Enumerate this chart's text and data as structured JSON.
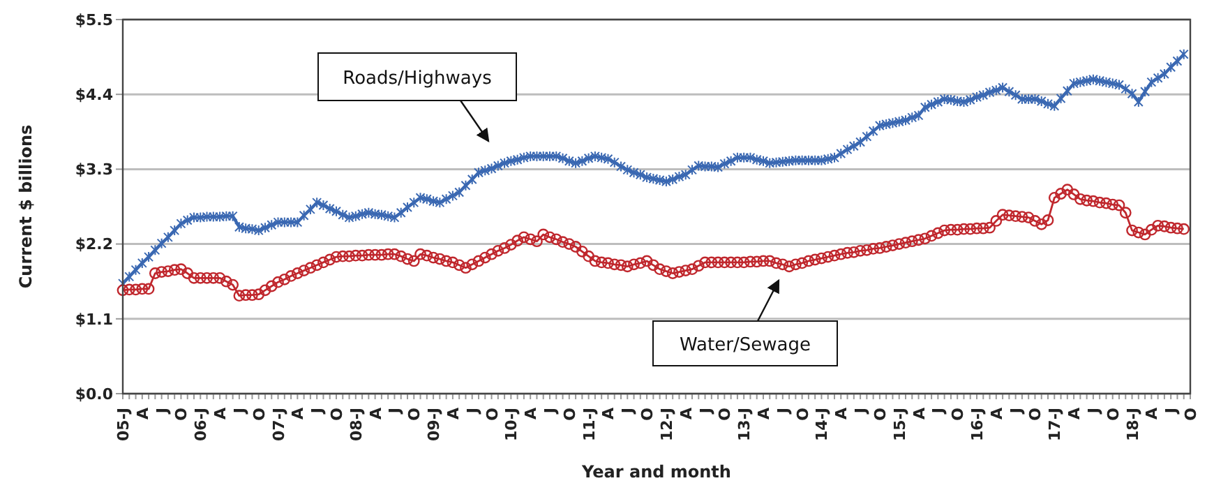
{
  "chart_data": {
    "type": "line",
    "xlabel": "Year and month",
    "ylabel": "Current $ billions",
    "categories": [
      "05-J",
      null,
      null,
      "A",
      null,
      null,
      "J",
      null,
      null,
      "O",
      null,
      null,
      "06-J",
      null,
      null,
      "A",
      null,
      null,
      "J",
      null,
      null,
      "O",
      null,
      null,
      "07-J",
      null,
      null,
      "A",
      null,
      null,
      "J",
      null,
      null,
      "O",
      null,
      null,
      "08-J",
      null,
      null,
      "A",
      null,
      null,
      "J",
      null,
      null,
      "O",
      null,
      null,
      "09-J",
      null,
      null,
      "A",
      null,
      null,
      "J",
      null,
      null,
      "O",
      null,
      null,
      "10-J",
      null,
      null,
      "A",
      null,
      null,
      "J",
      null,
      null,
      "O",
      null,
      null,
      "11-J",
      null,
      null,
      "A",
      null,
      null,
      "J",
      null,
      null,
      "O",
      null,
      null,
      "12-J",
      null,
      null,
      "A",
      null,
      null,
      "J",
      null,
      null,
      "O",
      null,
      null,
      "13-J",
      null,
      null,
      "A",
      null,
      null,
      "J",
      null,
      null,
      "O",
      null,
      null,
      "14-J",
      null,
      null,
      "A",
      null,
      null,
      "J",
      null,
      null,
      "O",
      null,
      null,
      "15-J",
      null,
      null,
      "A",
      null,
      null,
      "J",
      null,
      null,
      "O",
      null,
      null,
      "16-J",
      null,
      null,
      "A",
      null,
      null,
      "J",
      null,
      null,
      "O",
      null,
      null,
      "17-J",
      null,
      null,
      "A",
      null,
      null,
      "J",
      null,
      null,
      "O",
      null,
      null,
      "18-J",
      null,
      null,
      "A",
      null,
      null,
      "J",
      null,
      null,
      "O"
    ],
    "series": [
      {
        "color": "#3a68b2",
        "marker": "cross",
        "values": [
          1.62,
          1.72,
          1.82,
          1.92,
          2.01,
          2.11,
          2.21,
          2.3,
          2.4,
          2.5,
          2.55,
          2.59,
          2.59,
          2.6,
          2.6,
          2.6,
          2.61,
          2.61,
          2.45,
          2.43,
          2.42,
          2.4,
          2.44,
          2.48,
          2.52,
          2.52,
          2.52,
          2.52,
          2.62,
          2.71,
          2.81,
          2.77,
          2.72,
          2.68,
          2.63,
          2.59,
          2.61,
          2.64,
          2.66,
          2.64,
          2.63,
          2.61,
          2.59,
          2.66,
          2.74,
          2.81,
          2.88,
          2.86,
          2.83,
          2.81,
          2.86,
          2.91,
          2.96,
          3.06,
          3.15,
          3.25,
          3.28,
          3.31,
          3.35,
          3.39,
          3.42,
          3.44,
          3.47,
          3.49,
          3.49,
          3.49,
          3.49,
          3.49,
          3.46,
          3.42,
          3.39,
          3.42,
          3.46,
          3.49,
          3.47,
          3.45,
          3.4,
          3.34,
          3.29,
          3.25,
          3.22,
          3.18,
          3.16,
          3.14,
          3.12,
          3.15,
          3.19,
          3.22,
          3.29,
          3.35,
          3.34,
          3.34,
          3.33,
          3.38,
          3.42,
          3.47,
          3.47,
          3.47,
          3.44,
          3.42,
          3.39,
          3.4,
          3.41,
          3.42,
          3.43,
          3.43,
          3.43,
          3.43,
          3.43,
          3.45,
          3.47,
          3.53,
          3.59,
          3.64,
          3.7,
          3.78,
          3.86,
          3.94,
          3.96,
          3.98,
          4.0,
          4.02,
          4.06,
          4.09,
          4.21,
          4.25,
          4.29,
          4.33,
          4.32,
          4.3,
          4.29,
          4.32,
          4.36,
          4.39,
          4.43,
          4.46,
          4.5,
          4.44,
          4.39,
          4.33,
          4.33,
          4.33,
          4.3,
          4.26,
          4.23,
          4.34,
          4.45,
          4.56,
          4.58,
          4.6,
          4.62,
          4.6,
          4.58,
          4.56,
          4.54,
          4.48,
          4.41,
          4.29,
          4.44,
          4.58,
          4.64,
          4.7,
          4.8,
          4.89,
          4.99,
          null
        ]
      },
      {
        "color": "#c0272d",
        "marker": "circle",
        "values": [
          1.52,
          1.53,
          1.53,
          1.54,
          1.54,
          1.77,
          1.79,
          1.8,
          1.82,
          1.83,
          1.77,
          1.7,
          1.7,
          1.7,
          1.7,
          1.7,
          1.65,
          1.6,
          1.44,
          1.45,
          1.45,
          1.46,
          1.52,
          1.58,
          1.64,
          1.68,
          1.73,
          1.77,
          1.81,
          1.85,
          1.89,
          1.93,
          1.97,
          2.01,
          2.02,
          2.02,
          2.03,
          2.03,
          2.04,
          2.04,
          2.04,
          2.05,
          2.05,
          2.02,
          1.98,
          1.95,
          2.05,
          2.03,
          2.0,
          1.98,
          1.95,
          1.93,
          1.89,
          1.85,
          1.9,
          1.95,
          2.0,
          2.05,
          2.1,
          2.14,
          2.19,
          2.25,
          2.3,
          2.27,
          2.24,
          2.34,
          2.3,
          2.27,
          2.23,
          2.2,
          2.16,
          2.09,
          2.02,
          1.95,
          1.93,
          1.92,
          1.9,
          1.89,
          1.87,
          1.9,
          1.92,
          1.95,
          1.89,
          1.83,
          1.8,
          1.77,
          1.79,
          1.81,
          1.83,
          1.88,
          1.93,
          1.93,
          1.93,
          1.93,
          1.93,
          1.93,
          1.93,
          1.94,
          1.94,
          1.95,
          1.95,
          1.92,
          1.9,
          1.87,
          1.9,
          1.92,
          1.95,
          1.97,
          1.99,
          2.01,
          2.03,
          2.05,
          2.07,
          2.08,
          2.1,
          2.11,
          2.13,
          2.14,
          2.16,
          2.18,
          2.2,
          2.22,
          2.24,
          2.26,
          2.28,
          2.32,
          2.36,
          2.4,
          2.41,
          2.41,
          2.42,
          2.42,
          2.43,
          2.43,
          2.44,
          2.54,
          2.63,
          2.62,
          2.61,
          2.6,
          2.59,
          2.54,
          2.49,
          2.55,
          2.88,
          2.94,
          3.0,
          2.93,
          2.86,
          2.84,
          2.83,
          2.81,
          2.8,
          2.78,
          2.77,
          2.66,
          2.4,
          2.37,
          2.34,
          2.41,
          2.47,
          2.46,
          2.44,
          2.43,
          2.42,
          null
        ]
      }
    ],
    "ylim": [
      0,
      5.5
    ],
    "yticks": [
      {
        "value": 0,
        "label": "$0.0"
      },
      {
        "value": 1.1,
        "label": "$1.1"
      },
      {
        "value": 2.2,
        "label": "$2.2"
      },
      {
        "value": 3.3,
        "label": "$3.3"
      },
      {
        "value": 4.4,
        "label": "$4.4"
      },
      {
        "value": 5.5,
        "label": "$5.5"
      }
    ],
    "grid": "y",
    "legend": false,
    "annotations": [
      "Roads/Highways",
      "Water/Sewage"
    ]
  }
}
